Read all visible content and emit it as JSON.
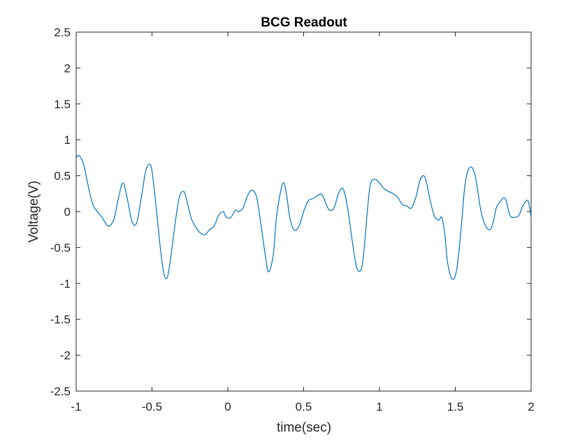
{
  "chart_data": {
    "type": "line",
    "title": "BCG Readout",
    "xlabel": "time(sec)",
    "ylabel": "Voltage(V)",
    "xlim": [
      -1,
      2
    ],
    "ylim": [
      -2.5,
      2.5
    ],
    "xticks": [
      "-1",
      "-0.5",
      "0",
      "0.5",
      "1",
      "1.5",
      "2"
    ],
    "yticks": [
      "-2.5",
      "-2",
      "-1.5",
      "-1",
      "-0.5",
      "0",
      "0.5",
      "1",
      "1.5",
      "2",
      "2.5"
    ],
    "grid": false,
    "box": true,
    "line_color": "#0072BD",
    "series": [
      {
        "x": [
          -1.0,
          -0.98,
          -0.95,
          -0.92,
          -0.89,
          -0.86,
          -0.83,
          -0.8,
          -0.78,
          -0.75,
          -0.72,
          -0.69,
          -0.66,
          -0.63,
          -0.6,
          -0.57,
          -0.54,
          -0.51,
          -0.49,
          -0.46,
          -0.44,
          -0.42,
          -0.4,
          -0.38,
          -0.35,
          -0.32,
          -0.29,
          -0.27,
          -0.24,
          -0.21,
          -0.18,
          -0.15,
          -0.12,
          -0.09,
          -0.06,
          -0.03,
          -0.01,
          0.02,
          0.05,
          0.07,
          0.1,
          0.13,
          0.16,
          0.19,
          0.22,
          0.25,
          0.27,
          0.3,
          0.32,
          0.35,
          0.37,
          0.39,
          0.41,
          0.44,
          0.47,
          0.5,
          0.53,
          0.56,
          0.59,
          0.62,
          0.65,
          0.67,
          0.7,
          0.73,
          0.76,
          0.79,
          0.82,
          0.85,
          0.88,
          0.9,
          0.92,
          0.94,
          0.97,
          1.0,
          1.03,
          1.06,
          1.09,
          1.12,
          1.15,
          1.18,
          1.21,
          1.24,
          1.27,
          1.3,
          1.33,
          1.36,
          1.39,
          1.41,
          1.43,
          1.45,
          1.48,
          1.51,
          1.54,
          1.56,
          1.58,
          1.6,
          1.62,
          1.64,
          1.67,
          1.7,
          1.73,
          1.75,
          1.77,
          1.8,
          1.83,
          1.86,
          1.89,
          1.92,
          1.95,
          1.98,
          2.0
        ],
        "y": [
          0.75,
          0.78,
          0.65,
          0.35,
          0.1,
          0.0,
          -0.08,
          -0.18,
          -0.2,
          -0.1,
          0.2,
          0.4,
          0.15,
          -0.15,
          -0.15,
          0.2,
          0.58,
          0.65,
          0.4,
          -0.2,
          -0.6,
          -0.88,
          -0.92,
          -0.7,
          -0.2,
          0.2,
          0.28,
          0.15,
          -0.1,
          -0.22,
          -0.3,
          -0.32,
          -0.25,
          -0.2,
          -0.05,
          0.0,
          -0.08,
          -0.08,
          0.02,
          0.0,
          0.05,
          0.22,
          0.3,
          0.2,
          -0.2,
          -0.65,
          -0.84,
          -0.6,
          -0.1,
          0.3,
          0.4,
          0.2,
          -0.1,
          -0.26,
          -0.2,
          0.0,
          0.15,
          0.18,
          0.22,
          0.24,
          0.1,
          0.02,
          0.05,
          0.25,
          0.32,
          0.05,
          -0.4,
          -0.78,
          -0.8,
          -0.5,
          0.0,
          0.38,
          0.45,
          0.4,
          0.32,
          0.28,
          0.25,
          0.2,
          0.1,
          0.08,
          0.05,
          0.2,
          0.45,
          0.48,
          0.2,
          -0.05,
          -0.12,
          -0.08,
          -0.3,
          -0.72,
          -0.94,
          -0.8,
          -0.2,
          0.3,
          0.55,
          0.62,
          0.58,
          0.4,
          0.0,
          -0.2,
          -0.25,
          -0.15,
          0.05,
          0.15,
          0.18,
          -0.05,
          -0.08,
          -0.05,
          0.1,
          0.15,
          -0.08
        ]
      }
    ]
  }
}
